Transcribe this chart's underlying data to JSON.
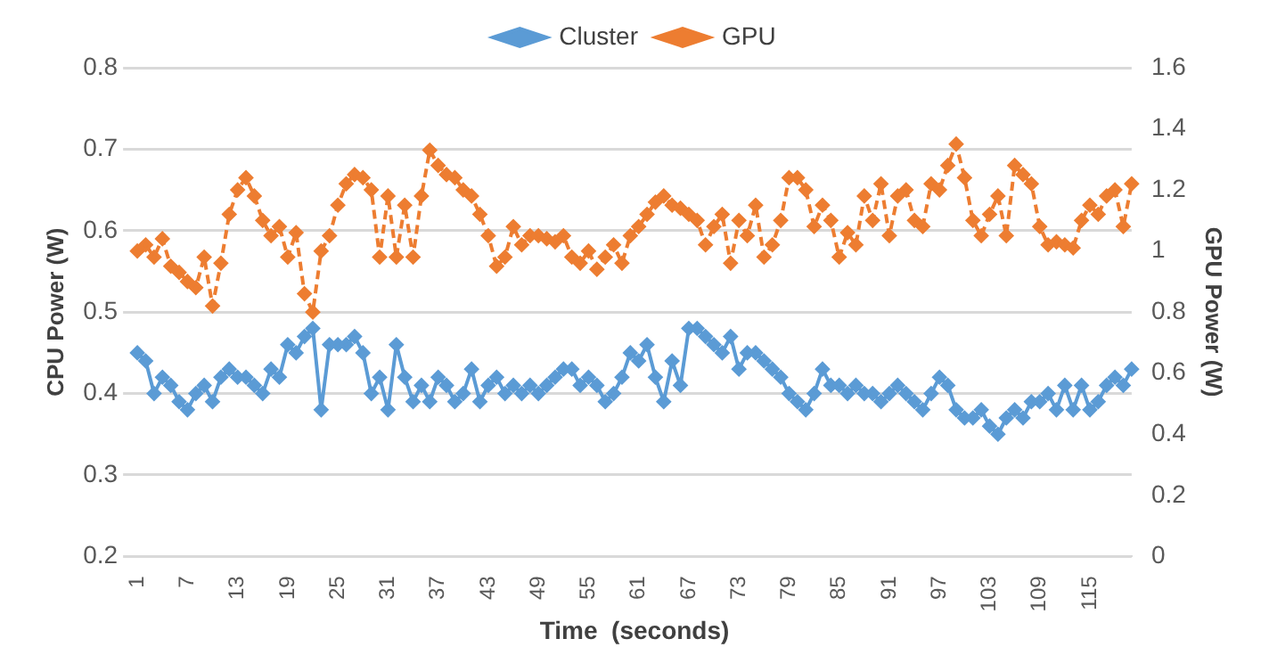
{
  "chart_data": {
    "type": "line",
    "xlabel": "Time  (seconds)",
    "ylabel": "CPU Power (W)",
    "y2label": "GPU Power (W)",
    "categories": [
      "1",
      null,
      null,
      null,
      null,
      null,
      "7",
      null,
      null,
      null,
      null,
      null,
      "13",
      null,
      null,
      null,
      null,
      null,
      "19",
      null,
      null,
      null,
      null,
      null,
      "25",
      null,
      null,
      null,
      null,
      null,
      "31",
      null,
      null,
      null,
      null,
      null,
      "37",
      null,
      null,
      null,
      null,
      null,
      "43",
      null,
      null,
      null,
      null,
      null,
      "49",
      null,
      null,
      null,
      null,
      null,
      "55",
      null,
      null,
      null,
      null,
      null,
      "61",
      null,
      null,
      null,
      null,
      null,
      "67",
      null,
      null,
      null,
      null,
      null,
      "73",
      null,
      null,
      null,
      null,
      null,
      "79",
      null,
      null,
      null,
      null,
      null,
      "85",
      null,
      null,
      null,
      null,
      null,
      "91",
      null,
      null,
      null,
      null,
      null,
      "97",
      null,
      null,
      null,
      null,
      null,
      "103",
      null,
      null,
      null,
      null,
      null,
      "109",
      null,
      null,
      null,
      null,
      null,
      "115",
      null,
      null,
      null,
      null,
      null
    ],
    "series": [
      {
        "name": "Cluster",
        "color": "#5b9bd5",
        "marker": "diamond",
        "line_style": "solid",
        "values": [
          0.45,
          0.44,
          0.4,
          0.42,
          0.41,
          0.39,
          0.38,
          0.4,
          0.41,
          0.39,
          0.42,
          0.43,
          0.42,
          0.42,
          0.41,
          0.4,
          0.43,
          0.42,
          0.46,
          0.45,
          0.47,
          0.48,
          0.38,
          0.46,
          0.46,
          0.46,
          0.47,
          0.45,
          0.4,
          0.42,
          0.38,
          0.46,
          0.42,
          0.39,
          0.41,
          0.39,
          0.42,
          0.41,
          0.39,
          0.4,
          0.43,
          0.39,
          0.41,
          0.42,
          0.4,
          0.41,
          0.4,
          0.41,
          0.4,
          0.41,
          0.42,
          0.43,
          0.43,
          0.41,
          0.42,
          0.41,
          0.39,
          0.4,
          0.42,
          0.45,
          0.44,
          0.46,
          0.42,
          0.39,
          0.44,
          0.41,
          0.48,
          0.48,
          0.47,
          0.46,
          0.45,
          0.47,
          0.43,
          0.45,
          0.45,
          0.44,
          0.43,
          0.42,
          0.4,
          0.39,
          0.38,
          0.4,
          0.43,
          0.41,
          0.41,
          0.4,
          0.41,
          0.4,
          0.4,
          0.39,
          0.4,
          0.41,
          0.4,
          0.39,
          0.38,
          0.4,
          0.42,
          0.41,
          0.38,
          0.37,
          0.37,
          0.38,
          0.36,
          0.35,
          0.37,
          0.38,
          0.37,
          0.39,
          0.39,
          0.4,
          0.38,
          0.41,
          0.38,
          0.41,
          0.38,
          0.39,
          0.41,
          0.42,
          0.41,
          0.43
        ]
      },
      {
        "name": "GPU",
        "color": "#ed7d31",
        "marker": "diamond",
        "line_style": "dashed",
        "axis": "y2",
        "values": [
          1.0,
          1.02,
          0.98,
          1.04,
          0.95,
          0.93,
          0.9,
          0.88,
          0.98,
          0.82,
          0.96,
          1.12,
          1.2,
          1.24,
          1.18,
          1.1,
          1.05,
          1.08,
          0.98,
          1.06,
          0.86,
          0.8,
          1.0,
          1.05,
          1.15,
          1.22,
          1.25,
          1.24,
          1.2,
          0.98,
          1.18,
          0.98,
          1.15,
          0.98,
          1.18,
          1.33,
          1.28,
          1.25,
          1.24,
          1.2,
          1.18,
          1.12,
          1.05,
          0.95,
          0.98,
          1.08,
          1.02,
          1.05,
          1.05,
          1.04,
          1.03,
          1.05,
          0.98,
          0.96,
          1.0,
          0.94,
          0.98,
          1.02,
          0.96,
          1.05,
          1.08,
          1.12,
          1.16,
          1.18,
          1.15,
          1.14,
          1.12,
          1.1,
          1.02,
          1.08,
          1.12,
          0.96,
          1.1,
          1.05,
          1.15,
          0.98,
          1.02,
          1.1,
          1.24,
          1.24,
          1.2,
          1.08,
          1.15,
          1.1,
          0.98,
          1.06,
          1.02,
          1.18,
          1.1,
          1.22,
          1.05,
          1.18,
          1.2,
          1.1,
          1.08,
          1.22,
          1.2,
          1.28,
          1.35,
          1.24,
          1.1,
          1.05,
          1.12,
          1.18,
          1.05,
          1.28,
          1.25,
          1.22,
          1.08,
          1.02,
          1.03,
          1.02,
          1.01,
          1.1,
          1.15,
          1.12,
          1.18,
          1.2,
          1.08,
          1.22
        ]
      }
    ],
    "ylim": [
      0.2,
      0.8
    ],
    "yticks": [
      0.2,
      0.3,
      0.4,
      0.5,
      0.6,
      0.7,
      0.8
    ],
    "y2lim": [
      0,
      1.6
    ],
    "y2ticks": [
      0,
      0.2,
      0.4,
      0.6,
      0.8,
      1,
      1.2,
      1.4,
      1.6
    ],
    "grid": "y",
    "legend": "top"
  }
}
